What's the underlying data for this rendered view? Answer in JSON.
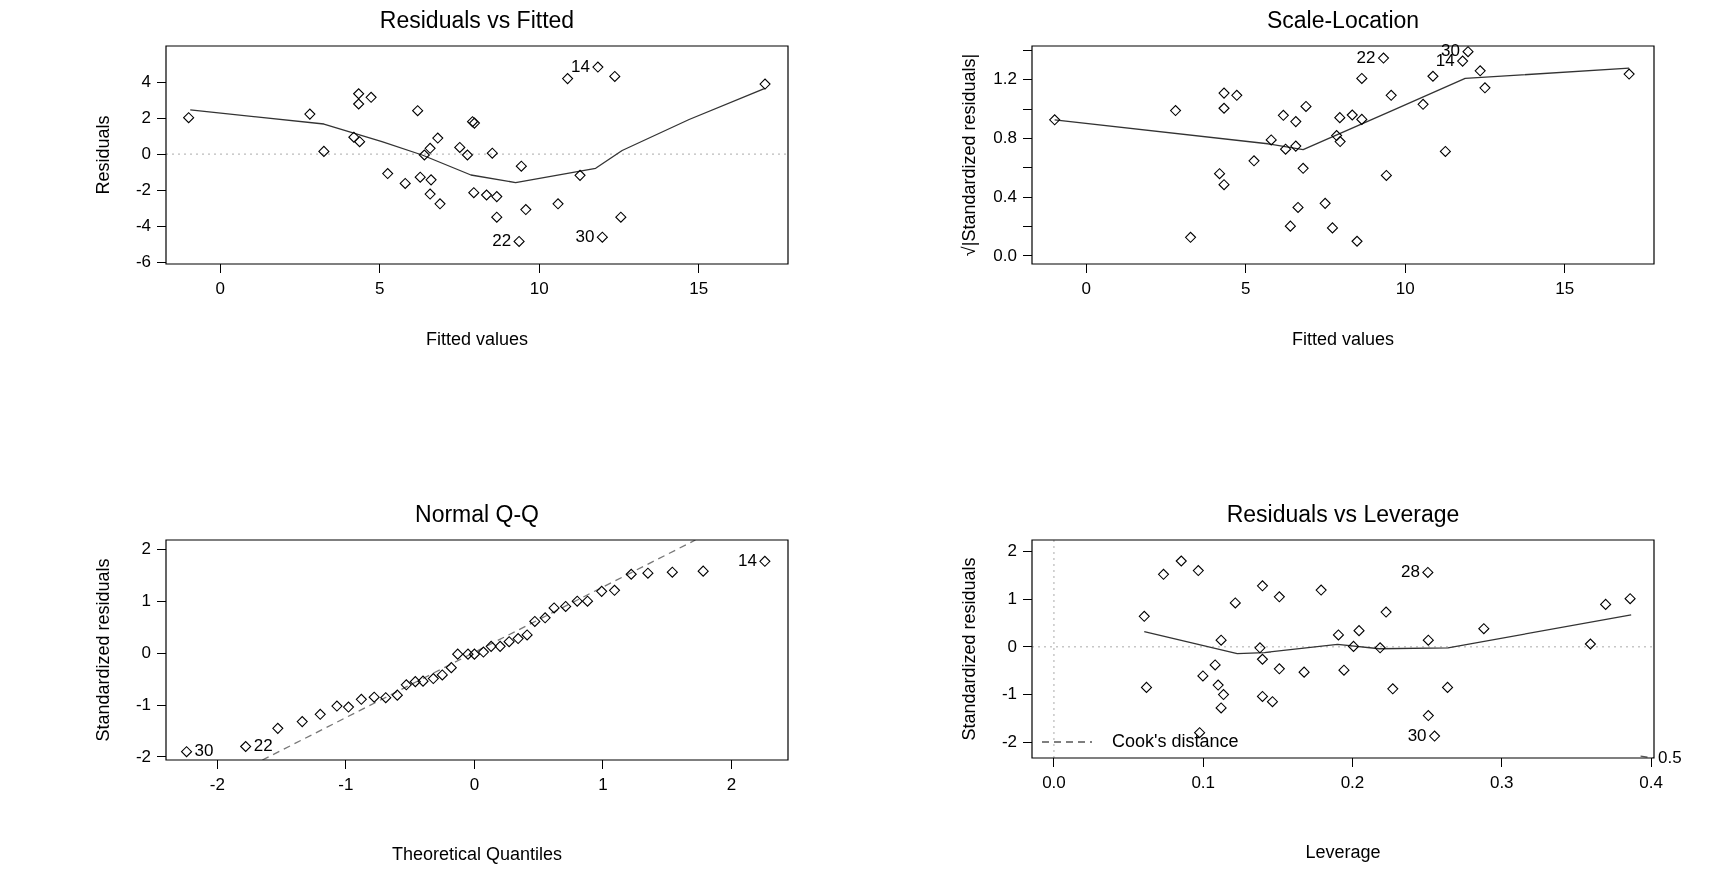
{
  "chart_data": [
    {
      "type": "scatter",
      "title": "Residuals vs Fitted",
      "xlabel": "Fitted values",
      "ylabel": "Residuals",
      "xlim": [
        -1.7,
        17.8
      ],
      "xticks": [
        0,
        5,
        10,
        15
      ],
      "ylim": [
        -6.1,
        6
      ],
      "yticks": [
        -6,
        -4,
        -2,
        0,
        2,
        4
      ],
      "series": [
        {
          "marker": "diamond",
          "color": "#000000",
          "x": [
            -0.99,
            2.81,
            3.25,
            4.19,
            4.37,
            4.34,
            4.34,
            4.73,
            5.25,
            5.8,
            6.19,
            6.27,
            6.4,
            6.58,
            6.61,
            6.58,
            6.82,
            6.89,
            7.51,
            7.75,
            7.91,
            7.97,
            7.95,
            8.35,
            8.53,
            8.67,
            8.67,
            9.37,
            9.44,
            9.58,
            10.59,
            10.89,
            11.28,
            11.84,
            11.98,
            12.37,
            12.56,
            17.08
          ],
          "values": [
            2.02,
            2.22,
            0.15,
            0.94,
            0.69,
            3.35,
            2.78,
            3.15,
            -1.08,
            -1.63,
            2.41,
            -1.28,
            -0.05,
            0.32,
            -1.43,
            -2.22,
            0.89,
            -2.76,
            0.37,
            -0.05,
            1.8,
            1.72,
            -2.14,
            -2.27,
            0.05,
            -2.36,
            -3.5,
            -4.85,
            -0.67,
            -3.08,
            -2.76,
            4.19,
            -1.18,
            4.83,
            -4.61,
            4.31,
            -3.5,
            3.89
          ]
        },
        {
          "type": "line",
          "color": "#333333",
          "line_style": "solid",
          "x": [
            -0.94,
            3.25,
            5.07,
            6.33,
            7.86,
            9.26,
            11.77,
            12.6,
            14.7,
            17.08
          ],
          "values": [
            2.46,
            1.67,
            0.69,
            -0.05,
            -1.16,
            -1.58,
            -0.79,
            0.2,
            1.92,
            3.65
          ]
        }
      ],
      "ref_lines": [
        {
          "axis": "y",
          "value": 0,
          "color": "#aaaaaa",
          "line_style": "dotted"
        }
      ],
      "annotations": [
        {
          "text": "14",
          "x": 11.84,
          "y": 4.83
        },
        {
          "text": "22",
          "x": 9.37,
          "y": -4.85
        },
        {
          "text": "30",
          "x": 11.98,
          "y": -4.61
        }
      ]
    },
    {
      "type": "scatter",
      "title": "Scale-Location",
      "xlabel": "Fitted values",
      "ylabel": "√|Standardized residuals|",
      "xlim": [
        -1.7,
        17.8
      ],
      "xticks": [
        0,
        5,
        10,
        15
      ],
      "ylim": [
        -0.055,
        1.43
      ],
      "yticks": [
        {
          "value": 0,
          "label": "0.0"
        },
        {
          "value": 0.2,
          "label": null
        },
        {
          "value": 0.4,
          "label": "0.4"
        },
        {
          "value": 0.6,
          "label": null
        },
        {
          "value": 0.8,
          "label": "0.8"
        },
        {
          "value": 1.0,
          "label": null
        },
        {
          "value": 1.2,
          "label": "1.2"
        },
        {
          "value": 1.4,
          "label": null
        }
      ],
      "series": [
        {
          "marker": "diamond",
          "color": "#000000",
          "x": [
            -0.99,
            2.8,
            3.27,
            4.18,
            4.32,
            4.32,
            4.32,
            4.72,
            5.26,
            5.8,
            6.18,
            6.25,
            6.4,
            6.57,
            6.57,
            6.64,
            6.8,
            6.89,
            7.49,
            7.72,
            7.85,
            7.95,
            7.96,
            8.34,
            8.49,
            8.64,
            8.64,
            9.32,
            9.41,
            9.56,
            10.56,
            10.87,
            11.26,
            11.8,
            11.97,
            12.35,
            12.5,
            17.02
          ],
          "values": [
            0.927,
            0.99,
            0.127,
            0.56,
            0.485,
            1.006,
            1.109,
            1.094,
            0.648,
            0.79,
            0.958,
            0.727,
            0.203,
            0.915,
            0.748,
            0.33,
            0.597,
            1.018,
            0.358,
            0.191,
            0.82,
            0.942,
            0.779,
            0.96,
            0.1,
            0.93,
            1.209,
            1.348,
            0.548,
            1.094,
            1.033,
            1.224,
            0.712,
            1.327,
            1.391,
            1.261,
            1.145,
            1.239
          ]
        },
        {
          "type": "line",
          "color": "#333333",
          "line_style": "solid",
          "x": [
            -0.99,
            5.69,
            6.8,
            9.59,
            11.88,
            17.02
          ],
          "values": [
            0.927,
            0.764,
            0.724,
            0.99,
            1.209,
            1.279
          ]
        }
      ],
      "annotations": [
        {
          "text": "22",
          "x": 9.32,
          "y": 1.348
        },
        {
          "text": "14",
          "x": 11.8,
          "y": 1.327
        },
        {
          "text": "30",
          "x": 11.97,
          "y": 1.391
        }
      ]
    },
    {
      "type": "scatter",
      "title": "Normal Q-Q",
      "xlabel": "Theoretical Quantiles",
      "ylabel": "Standardized residuals",
      "xlim": [
        -2.4,
        2.44
      ],
      "xticks": [
        -2,
        -1,
        0,
        1,
        2
      ],
      "ylim": [
        -2.06,
        2.18
      ],
      "yticks": [
        -2,
        -1,
        0,
        1,
        2
      ],
      "series": [
        {
          "marker": "diamond",
          "color": "#000000",
          "x": [
            -2.24,
            -1.78,
            -1.53,
            -1.34,
            -1.2,
            -1.07,
            -0.98,
            -0.88,
            -0.78,
            -0.69,
            -0.6,
            -0.53,
            -0.46,
            -0.4,
            -0.32,
            -0.25,
            -0.18,
            -0.13,
            -0.05,
            0.0,
            0.07,
            0.13,
            0.2,
            0.27,
            0.34,
            0.41,
            0.47,
            0.55,
            0.62,
            0.71,
            0.8,
            0.88,
            0.99,
            1.09,
            1.22,
            1.35,
            1.54,
            1.78,
            2.26
          ],
          "values": [
            -1.9,
            -1.8,
            -1.45,
            -1.32,
            -1.18,
            -1.02,
            -1.04,
            -0.89,
            -0.85,
            -0.86,
            -0.81,
            -0.61,
            -0.55,
            -0.54,
            -0.49,
            -0.42,
            -0.28,
            -0.02,
            -0.02,
            -0.02,
            0.02,
            0.13,
            0.13,
            0.22,
            0.28,
            0.35,
            0.61,
            0.68,
            0.87,
            0.9,
            1.0,
            1.0,
            1.19,
            1.21,
            1.52,
            1.54,
            1.56,
            1.58,
            1.77
          ]
        },
        {
          "type": "line",
          "color": "#777777",
          "line_style": "dashed",
          "x": [
            -1.65,
            1.72
          ],
          "values": [
            -2.06,
            2.18
          ]
        }
      ],
      "annotations": [
        {
          "text": "30",
          "x": -2.24,
          "y": -1.9
        },
        {
          "text": "22",
          "x": -1.78,
          "y": -1.8
        },
        {
          "text": "14",
          "x": 2.26,
          "y": 1.77
        }
      ]
    },
    {
      "type": "scatter",
      "title": "Residuals vs Leverage",
      "xlabel": "Leverage",
      "ylabel": "Standardized residuals",
      "legend": "bottom left",
      "xlim": [
        -0.0147,
        0.402
      ],
      "xticks": [
        {
          "value": 0,
          "label": "0.0"
        },
        0.1,
        0.2,
        0.3,
        0.4
      ],
      "ylim": [
        -2.33,
        2.24
      ],
      "yticks": [
        -2,
        -1,
        0,
        1,
        2
      ],
      "series": [
        {
          "marker": "diamond",
          "color": "#000000",
          "x": [
            0.0605,
            0.062,
            0.0734,
            0.0853,
            0.0967,
            0.0976,
            0.0998,
            0.108,
            0.11,
            0.112,
            0.1136,
            0.112,
            0.1215,
            0.138,
            0.1397,
            0.1397,
            0.1397,
            0.1464,
            0.151,
            0.151,
            0.1676,
            0.179,
            0.1906,
            0.1943,
            0.2007,
            0.2044,
            0.2185,
            0.2225,
            0.227,
            0.2505,
            0.2508,
            0.2508,
            0.255,
            0.2637,
            0.288,
            0.3594,
            0.3696,
            0.386
          ],
          "values": [
            0.64,
            -0.85,
            1.52,
            1.8,
            1.6,
            -1.8,
            -0.61,
            -0.38,
            -0.8,
            0.14,
            -1.0,
            -1.28,
            0.92,
            -0.02,
            1.28,
            -0.26,
            -1.04,
            -1.15,
            1.05,
            -0.46,
            -0.53,
            1.19,
            0.25,
            -0.49,
            0.01,
            0.34,
            -0.02,
            0.73,
            -0.88,
            1.56,
            0.14,
            -1.44,
            -1.87,
            -0.85,
            0.38,
            0.06,
            0.89,
            1.01
          ]
        },
        {
          "type": "line",
          "color": "#333333",
          "line_style": "solid",
          "x": [
            0.0605,
            0.1228,
            0.141,
            0.19,
            0.218,
            0.264,
            0.3867
          ],
          "values": [
            0.32,
            -0.14,
            -0.12,
            0.05,
            -0.04,
            -0.02,
            0.67
          ]
        },
        {
          "type": "line",
          "name": "Cook's distance",
          "color": "#555555",
          "line_style": "dashed",
          "x": [
            0.393,
            0.402
          ],
          "values": [
            -2.29,
            -2.33
          ]
        }
      ],
      "ref_lines": [
        {
          "axis": "y",
          "value": 0,
          "color": "#aaaaaa",
          "line_style": "dotted"
        },
        {
          "axis": "x",
          "value": 0,
          "color": "#aaaaaa",
          "line_style": "dotted"
        }
      ],
      "annotations": [
        {
          "text": "28",
          "x": 0.2505,
          "y": 1.56
        },
        {
          "text": "30",
          "x": 0.255,
          "y": -1.87
        },
        {
          "text": "0.5",
          "x": 0.402,
          "y": -2.33
        }
      ]
    }
  ]
}
